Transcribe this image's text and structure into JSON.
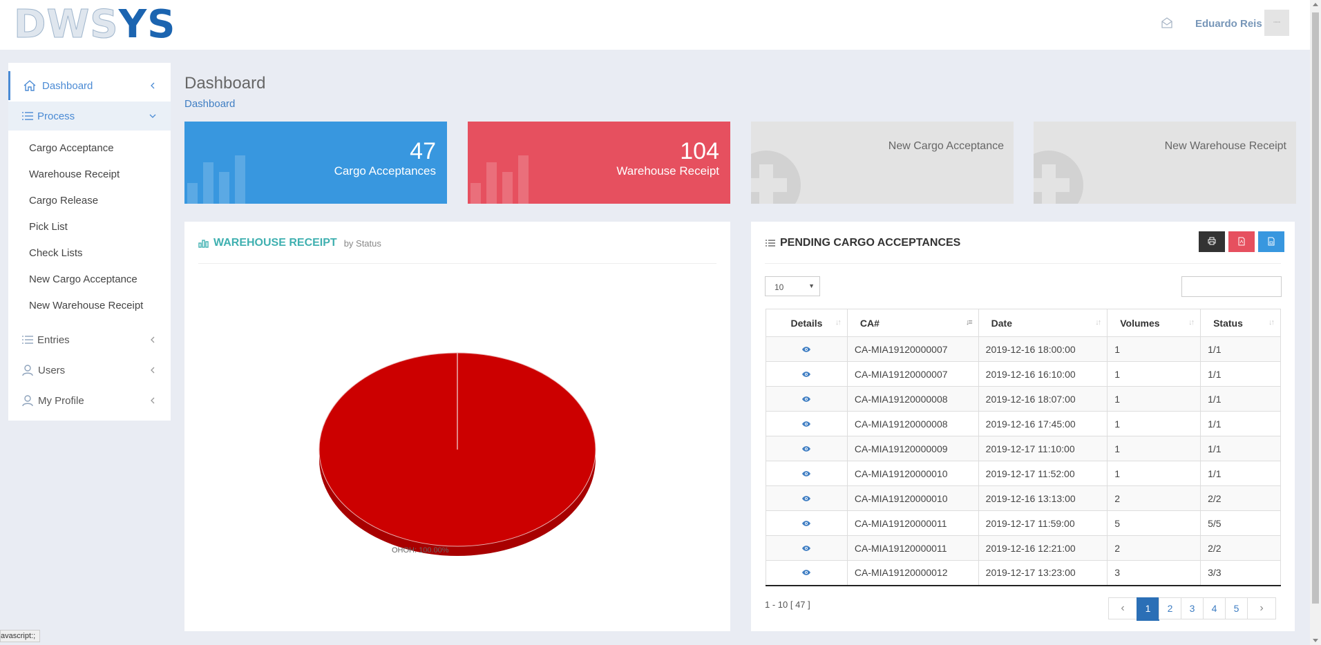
{
  "header": {
    "logo_left": "DWS",
    "logo_right": "YS",
    "user_name": "Eduardo Reis",
    "avatar_text": "▫▫▫▫"
  },
  "sidebar": {
    "items": [
      {
        "label": "Dashboard",
        "icon": "home-icon"
      },
      {
        "label": "Process",
        "icon": "list-icon"
      },
      {
        "label": "Entries",
        "icon": "list-icon"
      },
      {
        "label": "Users",
        "icon": "user-icon"
      },
      {
        "label": "My Profile",
        "icon": "user-icon"
      }
    ],
    "process_subitems": [
      "Cargo Acceptance",
      "Warehouse Receipt",
      "Cargo Release",
      "Pick List",
      "Check Lists",
      "New Cargo Acceptance",
      "New Warehouse Receipt"
    ]
  },
  "main": {
    "page_title": "Dashboard",
    "breadcrumb": "Dashboard",
    "stats": [
      {
        "value": "47",
        "label": "Cargo Acceptances",
        "color": "#3897df"
      },
      {
        "value": "104",
        "label": "Warehouse Receipt",
        "color": "#e6505f"
      },
      {
        "label": "New Cargo Acceptance"
      },
      {
        "label": "New Warehouse Receipt"
      }
    ]
  },
  "chart_panel": {
    "title": "WAREHOUSE RECEIPT",
    "subtitle": "by Status",
    "pie_label": "OHOH: 100.00%"
  },
  "chart_data": {
    "type": "pie",
    "slices": [
      {
        "label": "OHOH",
        "value": 100.0,
        "color": "#cc0000"
      }
    ],
    "title": "WAREHOUSE RECEIPT"
  },
  "table_panel": {
    "title": "PENDING CARGO ACCEPTANCES",
    "page_length": "10",
    "search_value": "",
    "columns": [
      "Details",
      "CA#",
      "Date",
      "Volumes",
      "Status"
    ],
    "rows": [
      {
        "ca": "CA-MIA19120000007",
        "date": "2019-12-16 18:00:00",
        "volumes": "1",
        "status": "1/1"
      },
      {
        "ca": "CA-MIA19120000007",
        "date": "2019-12-16 16:10:00",
        "volumes": "1",
        "status": "1/1"
      },
      {
        "ca": "CA-MIA19120000008",
        "date": "2019-12-16 18:07:00",
        "volumes": "1",
        "status": "1/1"
      },
      {
        "ca": "CA-MIA19120000008",
        "date": "2019-12-16 17:45:00",
        "volumes": "1",
        "status": "1/1"
      },
      {
        "ca": "CA-MIA19120000009",
        "date": "2019-12-17 11:10:00",
        "volumes": "1",
        "status": "1/1"
      },
      {
        "ca": "CA-MIA19120000010",
        "date": "2019-12-17 11:52:00",
        "volumes": "1",
        "status": "1/1"
      },
      {
        "ca": "CA-MIA19120000010",
        "date": "2019-12-16 13:13:00",
        "volumes": "2",
        "status": "2/2"
      },
      {
        "ca": "CA-MIA19120000011",
        "date": "2019-12-17 11:59:00",
        "volumes": "5",
        "status": "5/5"
      },
      {
        "ca": "CA-MIA19120000011",
        "date": "2019-12-16 12:21:00",
        "volumes": "2",
        "status": "2/2"
      },
      {
        "ca": "CA-MIA19120000012",
        "date": "2019-12-17 13:23:00",
        "volumes": "3",
        "status": "3/3"
      }
    ],
    "pager_info": "1 - 10 [ 47 ]",
    "pages": [
      "1",
      "2",
      "3",
      "4",
      "5"
    ],
    "prev": "‹",
    "next": "›"
  },
  "statusbar": {
    "text": "avascript:;"
  }
}
